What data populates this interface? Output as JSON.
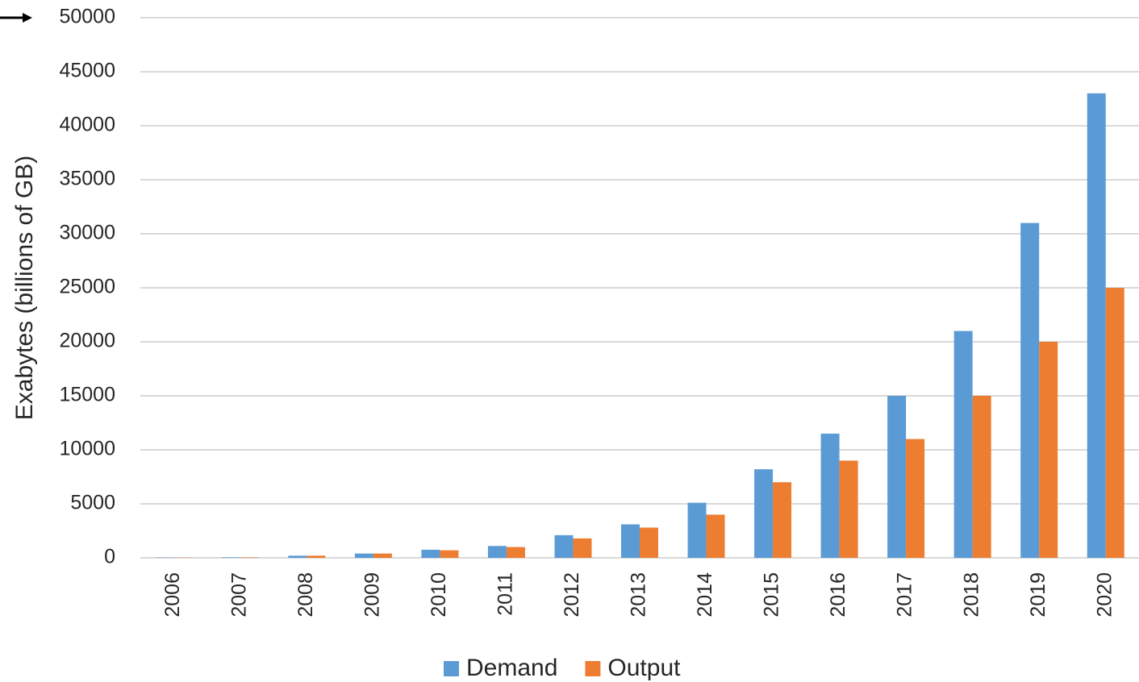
{
  "chart_data": {
    "type": "bar",
    "y_label": "Exabytes (billions of GB)",
    "categories": [
      "2006",
      "2007",
      "2008",
      "2009",
      "2010",
      "2011",
      "2012",
      "2013",
      "2014",
      "2015",
      "2016",
      "2017",
      "2018",
      "2019",
      "2020"
    ],
    "series": [
      {
        "name": "Demand",
        "color": "#5b9bd5",
        "values": [
          30,
          50,
          200,
          400,
          750,
          1100,
          2100,
          3100,
          5100,
          8200,
          11500,
          15000,
          21000,
          31000,
          43000
        ]
      },
      {
        "name": "Output",
        "color": "#ed7d31",
        "values": [
          20,
          40,
          200,
          400,
          700,
          1000,
          1800,
          2800,
          4000,
          7000,
          9000,
          11000,
          15000,
          20000,
          25000
        ]
      }
    ],
    "ylim": [
      0,
      50000
    ],
    "yticks": [
      0,
      5000,
      10000,
      15000,
      20000,
      25000,
      30000,
      35000,
      40000,
      45000,
      50000
    ],
    "grid": true,
    "legend": "bottom"
  }
}
